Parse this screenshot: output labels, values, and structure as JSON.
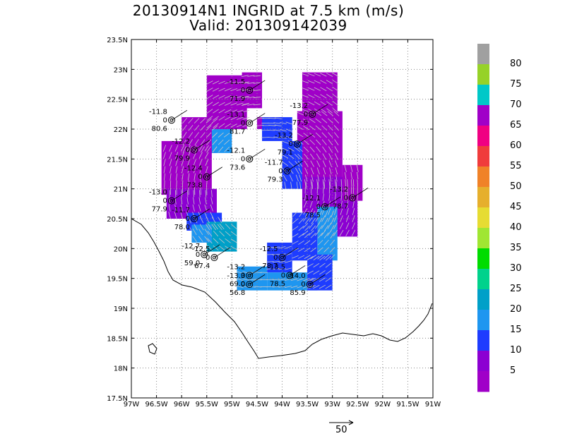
{
  "title": {
    "line1": "20130914N1 INGRID at 7.5 km (m/s)",
    "line2": "Valid: 201309142039"
  },
  "map": {
    "lat_labels": [
      "23.5N",
      "23N",
      "22.5N",
      "22N",
      "21.5N",
      "21N",
      "20.5N",
      "20N",
      "19.5N",
      "19N",
      "18.5N",
      "18N",
      "17.5N"
    ],
    "lon_labels": [
      "97W",
      "96.5W",
      "96W",
      "95.5W",
      "95W",
      "94.5W",
      "94W",
      "93.5W",
      "93W",
      "92.5W",
      "92W",
      "91.5W",
      "91W"
    ],
    "lat_range": [
      17.5,
      23.5
    ],
    "lon_range": [
      -97,
      -91
    ],
    "grid": true
  },
  "colorbar": {
    "labels": [
      "80",
      "75",
      "70",
      "65",
      "60",
      "55",
      "50",
      "45",
      "40",
      "35",
      "30",
      "25",
      "20",
      "15",
      "10",
      "5"
    ],
    "colors": [
      "#a0a0a0",
      "#96d228",
      "#00c8c8",
      "#a000c8",
      "#f00082",
      "#f03c3c",
      "#f08228",
      "#e6af2d",
      "#e6dc32",
      "#a0e632",
      "#00dc00",
      "#00d28c",
      "#00a0c8",
      "#1e96f0",
      "#1e3cff",
      "#8c00d2",
      "#a000c8"
    ]
  },
  "stations": [
    {
      "lon": -94.65,
      "lat": 22.65,
      "temp": "-11.5",
      "wind": "0",
      "rh": "71.9"
    },
    {
      "lon": -96.2,
      "lat": 22.15,
      "temp": "-11.8",
      "wind": "0",
      "rh": "80.6"
    },
    {
      "lon": -94.65,
      "lat": 22.1,
      "temp": "-13.1",
      "wind": "0",
      "rh": "81.7"
    },
    {
      "lon": -93.4,
      "lat": 22.25,
      "temp": "-13.2",
      "wind": "0",
      "rh": "77.9"
    },
    {
      "lon": -95.75,
      "lat": 21.65,
      "temp": "-12.2",
      "wind": "0",
      "rh": "79.9"
    },
    {
      "lon": -93.7,
      "lat": 21.75,
      "temp": "-13.2",
      "wind": "0",
      "rh": "79.1"
    },
    {
      "lon": -94.65,
      "lat": 21.5,
      "temp": "-12.1",
      "wind": "0",
      "rh": "73.6"
    },
    {
      "lon": -95.5,
      "lat": 21.2,
      "temp": "-12.4",
      "wind": "0",
      "rh": "73.8"
    },
    {
      "lon": -93.9,
      "lat": 21.3,
      "temp": "-11.7",
      "wind": "0",
      "rh": "79.3"
    },
    {
      "lon": -96.2,
      "lat": 20.8,
      "temp": "-13.0",
      "wind": "0",
      "rh": "77.9"
    },
    {
      "lon": -92.6,
      "lat": 20.85,
      "temp": "-13.2",
      "wind": "0",
      "rh": "78.7"
    },
    {
      "lon": -93.15,
      "lat": 20.7,
      "temp": "-12.1",
      "wind": "0",
      "rh": "78.5"
    },
    {
      "lon": -95.75,
      "lat": 20.5,
      "temp": "-11.7",
      "wind": "0",
      "rh": "78.0"
    },
    {
      "lon": -95.35,
      "lat": 19.85,
      "temp": "-12.5",
      "wind": "0",
      "rh": "67.4"
    },
    {
      "lon": -95.55,
      "lat": 19.9,
      "temp": "-12.7",
      "wind": "0",
      "rh": "59.0"
    },
    {
      "lon": -94.0,
      "lat": 19.85,
      "temp": "-12.5",
      "wind": "0",
      "rh": "78.7"
    },
    {
      "lon": -94.65,
      "lat": 19.55,
      "temp": "-13.2",
      "wind": "0",
      "rh": "69.0"
    },
    {
      "lon": -94.65,
      "lat": 19.4,
      "temp": "-13.3",
      "wind": "0",
      "rh": "56.8"
    },
    {
      "lon": -93.85,
      "lat": 19.55,
      "temp": "-13.5",
      "wind": "0",
      "rh": "78.5"
    },
    {
      "lon": -93.45,
      "lat": 19.4,
      "temp": "-14.0",
      "wind": "0",
      "rh": "85.9"
    }
  ],
  "scale": {
    "label": "50"
  }
}
